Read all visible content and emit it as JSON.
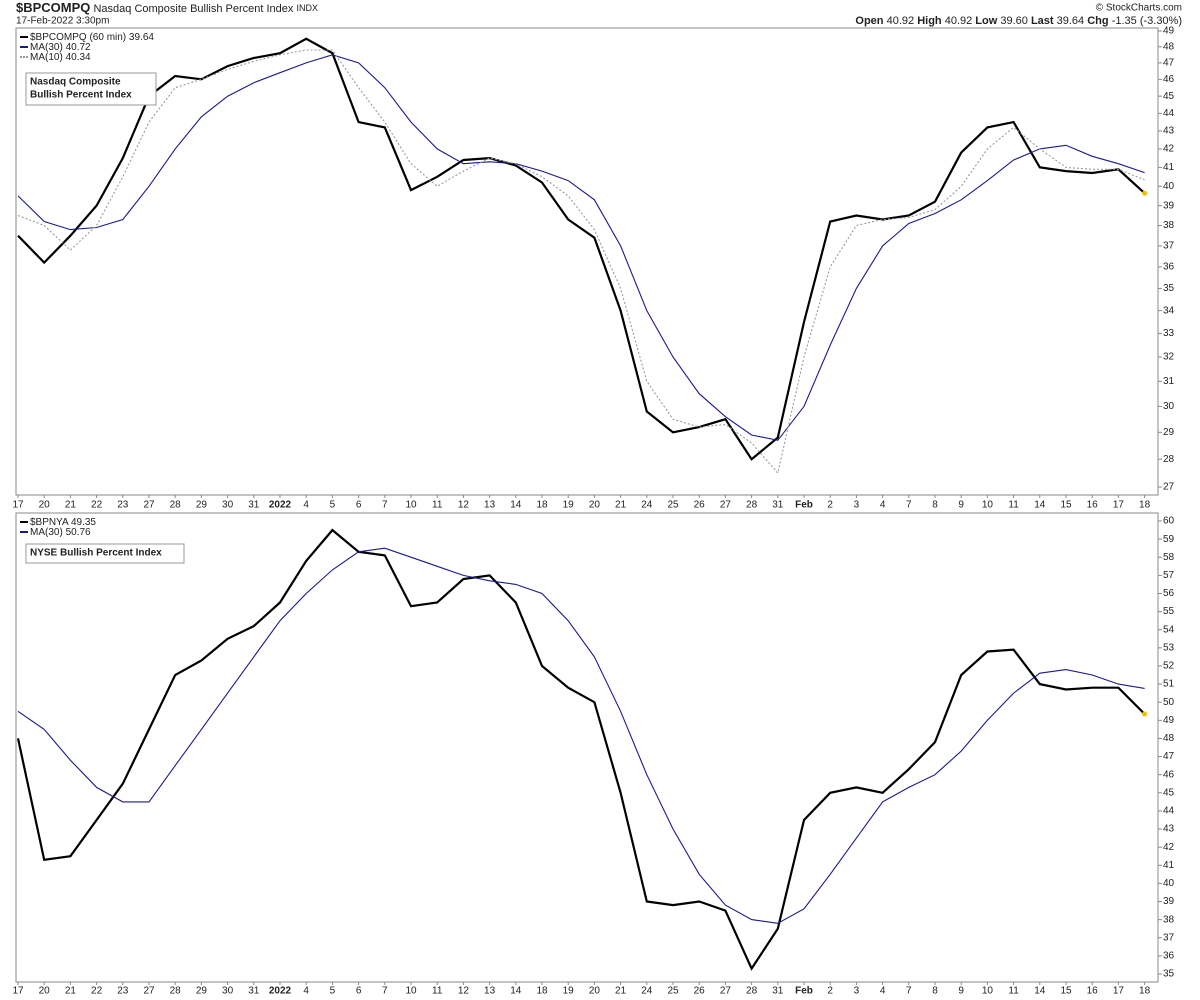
{
  "header": {
    "symbol": "$BPCOMPQ",
    "name": "Nasdaq Composite Bullish Percent Index",
    "exchange": "INDX",
    "date": "17-Feb-2022 3:30pm",
    "copyright": "© StockCharts.com",
    "quote": [
      {
        "label": "Open",
        "value": "40.92"
      },
      {
        "label": "High",
        "value": "40.92"
      },
      {
        "label": "Low",
        "value": "39.60"
      },
      {
        "label": "Last",
        "value": "39.64"
      },
      {
        "label": "Chg",
        "value": "-1.35 (-3.30%)"
      }
    ]
  },
  "chart_data": [
    {
      "type": "line",
      "log_scale": true,
      "annotation": [
        "Nasdaq Composite",
        "Bullish Percent Index"
      ],
      "categories": [
        "17",
        "20",
        "21",
        "22",
        "23",
        "27",
        "28",
        "29",
        "30",
        "31",
        "2022",
        "4",
        "5",
        "6",
        "7",
        "10",
        "11",
        "12",
        "13",
        "14",
        "18",
        "19",
        "20",
        "21",
        "24",
        "25",
        "26",
        "27",
        "28",
        "31",
        "Feb",
        "2",
        "3",
        "4",
        "7",
        "8",
        "9",
        "10",
        "11",
        "14",
        "15",
        "16",
        "17",
        "18"
      ],
      "series": [
        {
          "name": "$BPCOMPQ (60 min)",
          "color": "#000000",
          "values": [
            37.5,
            36.2,
            37.5,
            39,
            41.5,
            45,
            46.2,
            46,
            46.8,
            47.3,
            47.6,
            48.5,
            47.6,
            43.5,
            43.2,
            39.8,
            40.5,
            41.4,
            41.5,
            41.1,
            40.2,
            38.3,
            37.4,
            34,
            29.8,
            29,
            29.2,
            29.5,
            28,
            28.8,
            33.5,
            38.2,
            38.5,
            38.3,
            38.5,
            39.2,
            41.8,
            43.2,
            43.5,
            41,
            40.8,
            40.7,
            40.9,
            39.64
          ]
        },
        {
          "name": "MA(30)",
          "color": "#1a1a8c",
          "values": [
            39.5,
            38.2,
            37.8,
            37.9,
            38.3,
            40,
            42,
            43.8,
            45,
            45.8,
            46.4,
            47,
            47.5,
            47,
            45.5,
            43.5,
            42,
            41.2,
            41.3,
            41.2,
            40.8,
            40.3,
            39.3,
            37,
            34,
            32,
            30.5,
            29.6,
            28.9,
            28.7,
            30,
            32.5,
            35,
            37,
            38.1,
            38.6,
            39.3,
            40.3,
            41.4,
            42,
            42.2,
            41.6,
            41.2,
            40.72
          ]
        },
        {
          "name": "MA(10)",
          "color": "#999999",
          "dashed": true,
          "values": [
            38.5,
            38,
            36.8,
            38,
            40.5,
            43.5,
            45.5,
            46,
            46.6,
            47.1,
            47.5,
            47.8,
            47.8,
            45.5,
            43.5,
            41.2,
            40,
            40.8,
            41.5,
            41.2,
            40.5,
            39.5,
            37.8,
            35,
            31,
            29.5,
            29.2,
            29.3,
            28.6,
            27.5,
            32,
            36,
            38,
            38.3,
            38.4,
            38.8,
            40,
            42,
            43.2,
            42,
            41,
            40.9,
            40.9,
            40.34
          ]
        }
      ],
      "ylim": [
        27,
        49
      ],
      "yticks": [
        27,
        28,
        29,
        30,
        31,
        32,
        33,
        34,
        35,
        36,
        37,
        38,
        39,
        40,
        41,
        42,
        43,
        44,
        45,
        46,
        47,
        48,
        49
      ]
    },
    {
      "type": "line",
      "log_scale": false,
      "annotation": [
        "NYSE Bullish Percent Index"
      ],
      "categories": [
        "17",
        "20",
        "21",
        "22",
        "23",
        "27",
        "28",
        "29",
        "30",
        "31",
        "2022",
        "4",
        "5",
        "6",
        "7",
        "10",
        "11",
        "12",
        "13",
        "14",
        "18",
        "19",
        "20",
        "21",
        "24",
        "25",
        "26",
        "27",
        "28",
        "31",
        "Feb",
        "2",
        "3",
        "4",
        "7",
        "8",
        "9",
        "10",
        "11",
        "14",
        "15",
        "16",
        "17",
        "18"
      ],
      "series": [
        {
          "name": "$BPNYA",
          "color": "#000000",
          "values": [
            48,
            41.3,
            41.5,
            43.5,
            45.5,
            48.5,
            51.5,
            52.3,
            53.5,
            54.2,
            55.5,
            57.8,
            59.5,
            58.3,
            58.1,
            55.3,
            55.5,
            56.8,
            57,
            55.5,
            52,
            50.8,
            50,
            45,
            39,
            38.8,
            39,
            38.5,
            35.3,
            37.5,
            43.5,
            45,
            45.3,
            45,
            46.3,
            47.8,
            51.5,
            52.8,
            52.9,
            51,
            50.7,
            50.8,
            50.8,
            49.35
          ]
        },
        {
          "name": "MA(30)",
          "color": "#1a1a8c",
          "values": [
            49.5,
            48.5,
            46.8,
            45.3,
            44.5,
            44.5,
            46.5,
            48.5,
            50.5,
            52.5,
            54.5,
            56,
            57.3,
            58.3,
            58.5,
            58,
            57.5,
            57,
            56.7,
            56.5,
            56,
            54.5,
            52.5,
            49.5,
            46,
            43,
            40.5,
            38.8,
            38,
            37.8,
            38.6,
            40.5,
            42.5,
            44.5,
            45.3,
            46,
            47.3,
            49,
            50.5,
            51.6,
            51.8,
            51.5,
            51,
            50.76
          ]
        }
      ],
      "ylim": [
        35,
        60
      ],
      "yticks": [
        35,
        36,
        37,
        38,
        39,
        40,
        41,
        42,
        43,
        44,
        45,
        46,
        47,
        48,
        49,
        50,
        51,
        52,
        53,
        54,
        55,
        56,
        57,
        58,
        59,
        60
      ]
    }
  ]
}
